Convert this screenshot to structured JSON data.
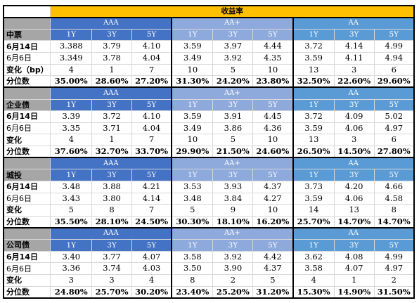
{
  "title": "收益率",
  "groups": [
    "AAA",
    "AA+",
    "AA"
  ],
  "terms": [
    "1Y",
    "3Y",
    "5Y"
  ],
  "blocks": [
    {
      "name": "中票",
      "rows": [
        {
          "label": "6月14日",
          "values": [
            "3.388",
            "3.79",
            "4.10",
            "3.59",
            "3.97",
            "4.44",
            "3.72",
            "4.14",
            "4.99"
          ]
        },
        {
          "label": "6月6日",
          "values": [
            "3.349",
            "3.78",
            "4.04",
            "3.49",
            "3.92",
            "4.35",
            "3.59",
            "4.11",
            "4.94"
          ]
        },
        {
          "label": "变化（bp）",
          "values": [
            "4",
            "1",
            "7",
            "10",
            "5",
            "10",
            "13",
            "3",
            "6"
          ]
        },
        {
          "label": "分位数",
          "values": [
            "35.00%",
            "28.60%",
            "27.20%",
            "31.30%",
            "24.20%",
            "23.80%",
            "32.50%",
            "22.60%",
            "29.60%"
          ]
        }
      ]
    },
    {
      "name": "企业债",
      "rows": [
        {
          "label": "6月14日",
          "values": [
            "3.39",
            "3.72",
            "4.10",
            "3.59",
            "3.91",
            "4.45",
            "3.72",
            "4.09",
            "5.02"
          ]
        },
        {
          "label": "6月6日",
          "values": [
            "3.35",
            "3.71",
            "4.04",
            "3.49",
            "3.86",
            "4.36",
            "3.59",
            "4.06",
            "4.97"
          ]
        },
        {
          "label": "变化",
          "values": [
            "4",
            "1",
            "7",
            "10",
            "5",
            "10",
            "13",
            "3",
            "6"
          ]
        },
        {
          "label": "分位数",
          "values": [
            "37.60%",
            "32.70%",
            "33.70%",
            "29.90%",
            "21.50%",
            "24.60%",
            "26.50%",
            "14.50%",
            "27.80%"
          ]
        }
      ]
    },
    {
      "name": "城投",
      "rows": [
        {
          "label": "6月14日",
          "values": [
            "3.48",
            "3.88",
            "4.21",
            "3.53",
            "3.93",
            "4.37",
            "3.73",
            "4.20",
            "4.66"
          ]
        },
        {
          "label": "6月6日",
          "values": [
            "3.43",
            "3.80",
            "4.14",
            "3.48",
            "3.84",
            "4.27",
            "3.59",
            "4.06",
            "4.58"
          ]
        },
        {
          "label": "变化",
          "values": [
            "5",
            "8",
            "7",
            "5",
            "9",
            "10",
            "14",
            "13",
            "8"
          ]
        },
        {
          "label": "分位数",
          "values": [
            "35.50%",
            "28.10%",
            "24.50%",
            "30.30%",
            "18.10%",
            "16.20%",
            "25.70%",
            "14.70%",
            "14.70%"
          ]
        }
      ]
    },
    {
      "name": "公司债",
      "rows": [
        {
          "label": "6月14日",
          "values": [
            "3.40",
            "3.77",
            "4.07",
            "3.58",
            "3.92",
            "4.42",
            "3.62",
            "4.08",
            "4.99"
          ]
        },
        {
          "label": "6月6日",
          "values": [
            "3.36",
            "3.74",
            "4.03",
            "3.50",
            "3.90",
            "4.37",
            "3.58",
            "4.07",
            "4.97"
          ]
        },
        {
          "label": "变化",
          "values": [
            "3",
            "3",
            "4",
            "8",
            "2",
            "5",
            "4",
            "1",
            "2"
          ]
        },
        {
          "label": "分位数",
          "values": [
            "24.80%",
            "25.70%",
            "30.20%",
            "23.40%",
            "25.20%",
            "31.20%",
            "15.30%",
            "14.90%",
            "31.50%"
          ]
        }
      ]
    }
  ]
}
